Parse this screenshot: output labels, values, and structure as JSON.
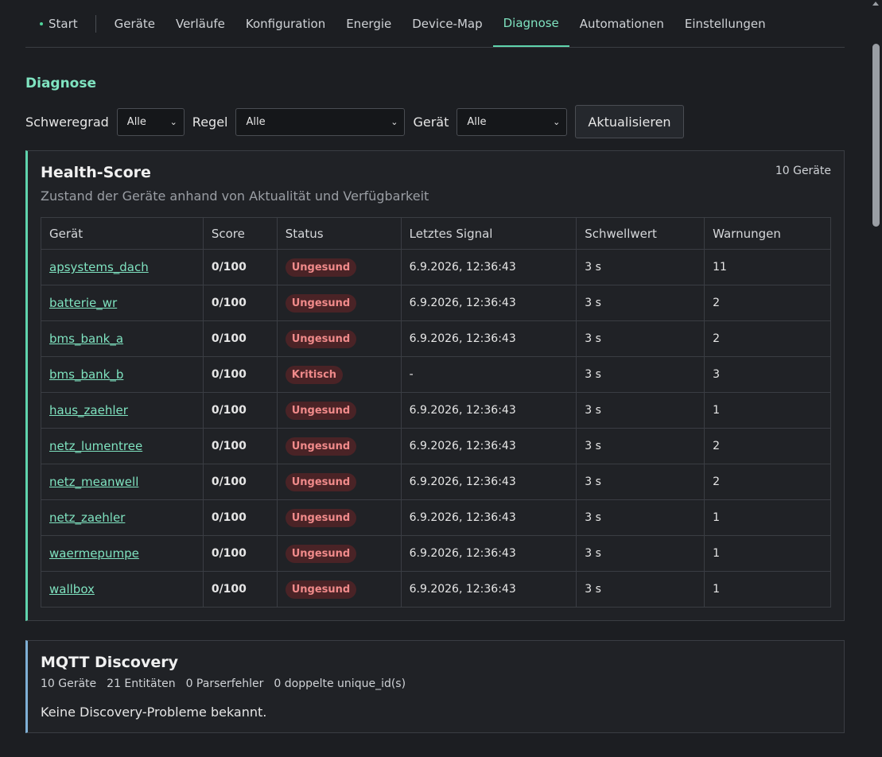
{
  "nav": {
    "items": [
      {
        "label": "Start"
      },
      {
        "label": "Geräte"
      },
      {
        "label": "Verläufe"
      },
      {
        "label": "Konfiguration"
      },
      {
        "label": "Energie"
      },
      {
        "label": "Device-Map"
      },
      {
        "label": "Diagnose"
      },
      {
        "label": "Automationen"
      },
      {
        "label": "Einstellungen"
      }
    ],
    "active": "Diagnose"
  },
  "page": {
    "title": "Diagnose"
  },
  "filters": {
    "severity_label": "Schweregrad",
    "severity_value": "Alle",
    "rule_label": "Regel",
    "rule_value": "Alle",
    "device_label": "Gerät",
    "device_value": "Alle",
    "refresh_label": "Aktualisieren"
  },
  "health": {
    "title": "Health-Score",
    "subtitle": "Zustand der Geräte anhand von Aktualität und Verfügbarkeit",
    "count": "10 Geräte",
    "columns": [
      "Gerät",
      "Score",
      "Status",
      "Letztes Signal",
      "Schwellwert",
      "Warnungen"
    ],
    "rows": [
      {
        "device": "apsystems_dach",
        "score": "0/100",
        "status": "Ungesund",
        "last": "6.9.2026, 12:36:43",
        "threshold": "3 s",
        "warnings": "11"
      },
      {
        "device": "batterie_wr",
        "score": "0/100",
        "status": "Ungesund",
        "last": "6.9.2026, 12:36:43",
        "threshold": "3 s",
        "warnings": "2"
      },
      {
        "device": "bms_bank_a",
        "score": "0/100",
        "status": "Ungesund",
        "last": "6.9.2026, 12:36:43",
        "threshold": "3 s",
        "warnings": "2"
      },
      {
        "device": "bms_bank_b",
        "score": "0/100",
        "status": "Kritisch",
        "last": "-",
        "threshold": "3 s",
        "warnings": "3"
      },
      {
        "device": "haus_zaehler",
        "score": "0/100",
        "status": "Ungesund",
        "last": "6.9.2026, 12:36:43",
        "threshold": "3 s",
        "warnings": "1"
      },
      {
        "device": "netz_lumentree",
        "score": "0/100",
        "status": "Ungesund",
        "last": "6.9.2026, 12:36:43",
        "threshold": "3 s",
        "warnings": "2"
      },
      {
        "device": "netz_meanwell",
        "score": "0/100",
        "status": "Ungesund",
        "last": "6.9.2026, 12:36:43",
        "threshold": "3 s",
        "warnings": "2"
      },
      {
        "device": "netz_zaehler",
        "score": "0/100",
        "status": "Ungesund",
        "last": "6.9.2026, 12:36:43",
        "threshold": "3 s",
        "warnings": "1"
      },
      {
        "device": "waermepumpe",
        "score": "0/100",
        "status": "Ungesund",
        "last": "6.9.2026, 12:36:43",
        "threshold": "3 s",
        "warnings": "1"
      },
      {
        "device": "wallbox",
        "score": "0/100",
        "status": "Ungesund",
        "last": "6.9.2026, 12:36:43",
        "threshold": "3 s",
        "warnings": "1"
      }
    ]
  },
  "mqtt": {
    "title": "MQTT Discovery",
    "stats": [
      "10 Geräte",
      "21 Entitäten",
      "0 Parserfehler",
      "0 doppelte unique_id(s)"
    ],
    "message": "Keine Discovery-Probleme bekannt."
  },
  "colors": {
    "accent": "#7fe3c0",
    "badge_bg": "#4a2326",
    "badge_fg": "#f08a8a",
    "mqtt_border": "#7fb0d6"
  }
}
